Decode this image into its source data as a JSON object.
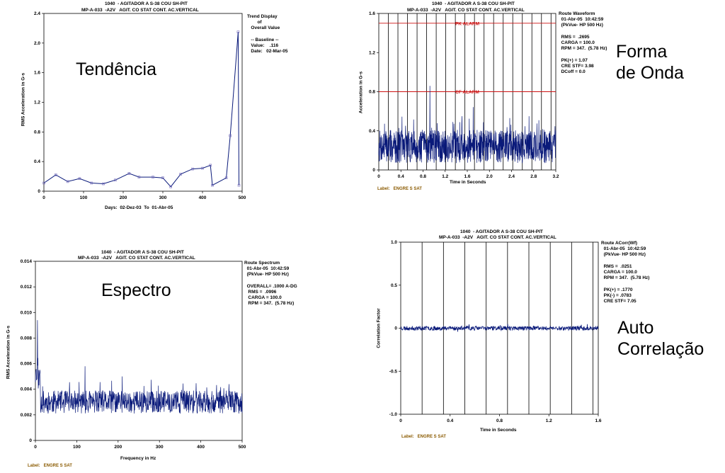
{
  "captions": {
    "trend": "Tendência",
    "waveform": "Forma\nde Onda",
    "spectrum": "Espectro",
    "autocorr": "Auto\nCorrelação"
  },
  "colors": {
    "trace": "#0a1a7a",
    "alarm": "#cc1111",
    "label_note": "#8a5a00"
  },
  "chart_data": [
    {
      "type": "line",
      "id": "trend",
      "header_line1": "1040  - AGITADOR A S-38 COU SH-PIT",
      "header_line2": "MP-A-033  -A2V   AGIT. CO STAT CONT. AC.VERTICAL",
      "side_text": "Trend Display\n        of\n   Overall Value\n\n   -- Baseline --\n   Value:    .116\n   Date:   02-Mar-05",
      "ylabel": "RMS Acceleration in G-s",
      "xlabel": "Days:  02-Dez-03  To  01-Abr-05",
      "xlim": [
        0,
        500
      ],
      "ylim": [
        0,
        2.4
      ],
      "xticks": [
        "0",
        "100",
        "200",
        "300",
        "400",
        "500"
      ],
      "yticks": [
        "0",
        "0.4",
        "0.8",
        "1.2",
        "1.6",
        "2.0",
        "2.4"
      ],
      "x": [
        0,
        30,
        60,
        90,
        120,
        150,
        180,
        215,
        240,
        275,
        300,
        320,
        345,
        375,
        400,
        420,
        425,
        460,
        470,
        490,
        492
      ],
      "values": [
        0.11,
        0.22,
        0.13,
        0.17,
        0.11,
        0.1,
        0.15,
        0.24,
        0.19,
        0.19,
        0.18,
        0.06,
        0.23,
        0.3,
        0.31,
        0.35,
        0.08,
        0.18,
        0.75,
        2.15,
        0.08
      ]
    },
    {
      "type": "line",
      "id": "waveform",
      "header_line1": "1040  - AGITADOR A S-38 COU SH-PIT",
      "header_line2": "MP-A-033  -A2V   AGIT. CO STAT CONT. AC.VERTICAL",
      "side_text": "Route Waveform\n  01-Abr-05  10:42:59\n  (PkVue- HP 500 Hz)\n\n  RMS =  .2695\n  CARGA = 100.0\n  RPM = 347.  (5.78 Hz)\n\n  PK(+) = 1.07\n  CRE STF= 3.98\n  DCoff = 0.0",
      "ylabel": "Acceleration in G-s",
      "xlabel": "Time in Seconds",
      "note": "Label:   ENGRE S SAT",
      "xlim": [
        0,
        3.2
      ],
      "ylim": [
        0,
        1.6
      ],
      "xticks": [
        "0",
        "0.4",
        "0.8",
        "1.2",
        "1.6",
        "2.0",
        "2.4",
        "2.8",
        "3.2"
      ],
      "yticks": [
        "0",
        "0.4",
        "0.8",
        "1.2",
        "1.6"
      ],
      "alarms": [
        {
          "label": "PK ALARM",
          "value": 1.5
        },
        {
          "label": "CF ALARM",
          "value": 0.8
        }
      ],
      "rev_period": 0.173,
      "rms": 0.2695,
      "peak": 1.07
    },
    {
      "type": "line",
      "id": "spectrum",
      "header_line1": "1040  - AGITADOR A S-38 COU SH-PIT",
      "header_line2": "MP-A-033  -A2V   AGIT. CO STAT CONT. AC.VERTICAL",
      "side_text": "Route Spectrum\n  01-Abr-05  10:42:59\n  (PkVue- HP 500 Hz)\n\n  OVERALL= .1000 A-DG\n   RMS =  .0996\n   CARGA = 100.0\n   RPM = 347.  (5.78 Hz)",
      "ylabel": "RMS Acceleration in G-s",
      "xlabel": "Frequency in Hz",
      "note": "Label:   ENGRE S SAT",
      "xlim": [
        0,
        500
      ],
      "ylim": [
        0,
        0.014
      ],
      "xticks": [
        "0",
        "100",
        "200",
        "300",
        "400",
        "500"
      ],
      "yticks": [
        "0",
        "0.002",
        "0.004",
        "0.006",
        "0.008",
        "0.010",
        "0.012",
        "0.014"
      ],
      "peaks": [
        {
          "x": 5,
          "value": 0.0094
        },
        {
          "x": 120,
          "value": 0.0058
        },
        {
          "x": 210,
          "value": 0.005
        }
      ]
    },
    {
      "type": "line",
      "id": "autocorr",
      "header_line1": "1040  - AGITADOR A S-38 COU SH-PIT",
      "header_line2": "MP-A-033  -A2V   AGIT. CO STAT CONT. AC.VERTICAL",
      "side_text": "Route ACorr(Wf)\n  01-Abr-05  10:42:59\n  (PkVue- HP 500 Hz)\n\n  RMS =  .0251\n  CARGA = 100.0\n  RPM = 347.  (5.78 Hz)\n\n  PK(+) = .1770\n  PK(-) = .0783\n  CRE STF= 7.05",
      "ylabel": "Correlation Factor",
      "xlabel": "Time in Seconds",
      "note": "Label:   ENGRE S SAT",
      "xlim": [
        0,
        1.6
      ],
      "ylim": [
        -1.0,
        1.0
      ],
      "xticks": [
        "0",
        "0.4",
        "0.8",
        "1.2",
        "1.6"
      ],
      "yticks": [
        "-1.0",
        "-0.5",
        "0",
        "0.5",
        "1.0"
      ],
      "rev_period": 0.173,
      "rms": 0.0251
    }
  ]
}
